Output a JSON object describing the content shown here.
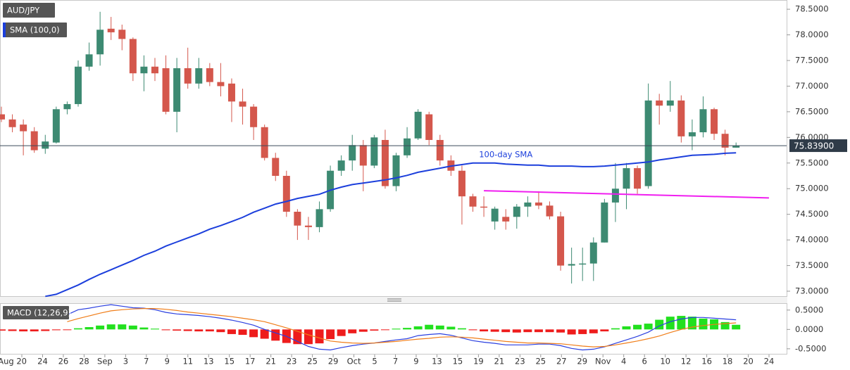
{
  "chart_data": [
    {
      "type": "candlestick",
      "name": "AUD/JPY",
      "up_color": "#3d8a72",
      "down_color": "#d4574c",
      "ylim": [
        72.89,
        78.68
      ],
      "yticks": [
        {
          "value": 73,
          "label": "73.0000"
        },
        {
          "value": 73.5,
          "label": "73.5000"
        },
        {
          "value": 74,
          "label": "74.0000"
        },
        {
          "value": 74.5,
          "label": "74.5000"
        },
        {
          "value": 75,
          "label": "75.0000"
        },
        {
          "value": 75.5,
          "label": "75.5000"
        },
        {
          "value": 76,
          "label": "76.0000"
        },
        {
          "value": 76.5,
          "label": "76.5000"
        },
        {
          "value": 77,
          "label": "77.0000"
        },
        {
          "value": 77.5,
          "label": "77.5000"
        },
        {
          "value": 78,
          "label": "78.0000"
        },
        {
          "value": 78.5,
          "label": "78.5000"
        }
      ],
      "open": [
        76.45,
        76.35,
        76.25,
        76.12,
        75.78,
        75.9,
        76.55,
        76.65,
        77.38,
        77.62,
        78.12,
        78.1,
        77.92,
        77.25,
        77.38,
        77.35,
        76.5,
        77.35,
        77.05,
        77.35,
        77.08,
        77.05,
        76.7,
        76.6,
        76.2,
        75.6,
        75.25,
        74.55,
        74.28,
        74.25,
        74.6,
        75.35,
        75.55,
        75.85,
        75.45,
        75.95,
        75.05,
        75.65,
        75.98,
        76.45,
        75.95,
        75.55,
        75.35,
        74.85,
        74.65,
        74.36,
        74.45,
        74.45,
        74.65,
        74.73,
        74.67,
        74.46,
        73.5,
        73.52,
        73.54,
        73.95,
        74.73,
        75.0,
        75.4,
        75.05,
        76.72,
        76.62,
        76.72,
        76.02,
        76.1,
        76.55,
        76.07,
        75.8
      ],
      "high": [
        76.6,
        76.45,
        76.35,
        76.2,
        76.05,
        76.6,
        76.7,
        77.5,
        77.85,
        78.45,
        78.35,
        78.2,
        77.95,
        77.6,
        77.55,
        77.6,
        77.55,
        77.75,
        77.55,
        77.45,
        77.45,
        77.15,
        76.95,
        76.65,
        76.25,
        75.7,
        75.35,
        74.6,
        74.45,
        74.75,
        75.45,
        75.65,
        76.05,
        75.95,
        76.05,
        76.15,
        75.7,
        76.2,
        76.55,
        76.5,
        76.05,
        75.65,
        75.45,
        74.9,
        74.85,
        74.65,
        74.6,
        74.7,
        74.85,
        74.95,
        74.75,
        74.55,
        73.85,
        73.85,
        74.05,
        74.8,
        75.5,
        75.5,
        75.45,
        77.05,
        76.85,
        77.1,
        76.82,
        76.35,
        76.8,
        76.58,
        76.15,
        75.9
      ],
      "low": [
        76.3,
        76.1,
        75.65,
        75.7,
        75.68,
        75.88,
        76.45,
        76.6,
        77.3,
        77.4,
        77.9,
        77.7,
        77.1,
        76.9,
        77.1,
        76.45,
        76.1,
        76.95,
        76.95,
        77.0,
        76.8,
        76.3,
        76.25,
        75.95,
        75.55,
        75.15,
        74.45,
        74.0,
        74.0,
        74.15,
        74.55,
        75.25,
        75.35,
        74.95,
        75.4,
        75.0,
        74.95,
        75.6,
        75.95,
        75.85,
        75.45,
        75.25,
        74.3,
        74.55,
        74.45,
        74.2,
        74.2,
        74.22,
        74.45,
        74.6,
        74.4,
        73.4,
        73.15,
        73.2,
        73.2,
        73.95,
        74.35,
        74.6,
        74.9,
        75.0,
        76.25,
        76.5,
        75.9,
        75.75,
        76.0,
        75.95,
        75.65,
        75.8
      ],
      "close": [
        76.35,
        76.2,
        76.12,
        75.75,
        75.92,
        76.55,
        76.65,
        77.38,
        77.62,
        78.1,
        78.05,
        77.92,
        77.25,
        77.38,
        77.25,
        76.5,
        77.35,
        77.05,
        77.35,
        77.08,
        77.0,
        76.7,
        76.6,
        76.2,
        75.6,
        75.25,
        74.55,
        74.28,
        74.25,
        74.6,
        75.35,
        75.55,
        75.85,
        75.45,
        76.0,
        75.05,
        75.65,
        75.98,
        76.5,
        75.95,
        75.55,
        75.35,
        74.85,
        74.65,
        74.63,
        74.61,
        74.36,
        74.65,
        74.73,
        74.67,
        74.46,
        73.5,
        73.53,
        73.54,
        73.95,
        74.73,
        75.0,
        75.4,
        75.0,
        76.72,
        76.62,
        76.72,
        76.02,
        76.1,
        76.55,
        76.07,
        75.8,
        75.839
      ],
      "sma": {
        "name": "SMA (100,0)",
        "color": "#1c3fdc",
        "annotation": "100-day SMA",
        "values": [
          null,
          null,
          null,
          null,
          72.9,
          72.94,
          73.03,
          73.12,
          73.23,
          73.33,
          73.42,
          73.51,
          73.6,
          73.7,
          73.78,
          73.88,
          73.96,
          74.04,
          74.12,
          74.21,
          74.28,
          74.36,
          74.44,
          74.54,
          74.62,
          74.7,
          74.75,
          74.81,
          74.85,
          74.89,
          74.97,
          75.03,
          75.08,
          75.11,
          75.14,
          75.17,
          75.21,
          75.26,
          75.32,
          75.36,
          75.4,
          75.44,
          75.47,
          75.5,
          75.5,
          75.5,
          75.48,
          75.47,
          75.46,
          75.46,
          75.44,
          75.44,
          75.44,
          75.43,
          75.43,
          75.44,
          75.46,
          75.48,
          75.5,
          75.52,
          75.56,
          75.59,
          75.62,
          75.65,
          75.66,
          75.67,
          75.69,
          75.7
        ]
      },
      "trendline": {
        "color": "#f01ef0",
        "x": [
          44,
          70
        ],
        "values": [
          74.96,
          74.82
        ]
      },
      "last_price": {
        "value": 75.839,
        "label": "75.83900"
      }
    },
    {
      "type": "macd",
      "title": "MACD (12,26,9)",
      "ylim": [
        -0.63,
        0.66
      ],
      "yticks": [
        {
          "value": -0.5,
          "label": "-0.5000"
        },
        {
          "value": 0,
          "label": "0.0000"
        },
        {
          "value": 0.5,
          "label": "0.5000"
        }
      ],
      "histogram": {
        "up_color": "#22e01e",
        "down_color": "#ee1c1c",
        "values": [
          -0.03,
          -0.04,
          -0.05,
          -0.05,
          -0.04,
          -0.02,
          -0.01,
          0.03,
          0.06,
          0.1,
          0.13,
          0.13,
          0.1,
          0.05,
          0.02,
          -0.02,
          -0.03,
          -0.04,
          -0.05,
          -0.05,
          -0.07,
          -0.12,
          -0.14,
          -0.2,
          -0.24,
          -0.29,
          -0.35,
          -0.38,
          -0.38,
          -0.36,
          -0.25,
          -0.17,
          -0.1,
          -0.06,
          -0.03,
          -0.01,
          0.02,
          0.04,
          0.08,
          0.12,
          0.1,
          0.07,
          0.03,
          -0.02,
          -0.05,
          -0.06,
          -0.07,
          -0.08,
          -0.07,
          -0.07,
          -0.07,
          -0.08,
          -0.13,
          -0.12,
          -0.1,
          -0.05,
          0.03,
          0.08,
          0.12,
          0.15,
          0.25,
          0.33,
          0.35,
          0.33,
          0.28,
          0.26,
          0.19,
          0.12
        ]
      },
      "macd": {
        "color": "#2a3fe0",
        "values": [
          null,
          null,
          null,
          null,
          null,
          null,
          0.38,
          0.51,
          0.55,
          0.6,
          0.64,
          0.6,
          0.56,
          0.55,
          0.51,
          0.44,
          0.4,
          0.38,
          0.36,
          0.33,
          0.29,
          0.24,
          0.18,
          0.11,
          0,
          -0.09,
          -0.18,
          -0.31,
          -0.44,
          -0.51,
          -0.53,
          -0.47,
          -0.42,
          -0.38,
          -0.35,
          -0.31,
          -0.27,
          -0.24,
          -0.16,
          -0.13,
          -0.11,
          -0.15,
          -0.22,
          -0.29,
          -0.33,
          -0.36,
          -0.4,
          -0.4,
          -0.4,
          -0.38,
          -0.38,
          -0.42,
          -0.49,
          -0.53,
          -0.51,
          -0.45,
          -0.36,
          -0.27,
          -0.18,
          -0.07,
          0.09,
          0.2,
          0.27,
          0.31,
          0.31,
          0.29,
          0.27,
          0.25
        ]
      },
      "signal": {
        "color": "#f07d18",
        "values": [
          null,
          null,
          null,
          null,
          null,
          null,
          0.2,
          0.28,
          0.35,
          0.42,
          0.48,
          0.51,
          0.53,
          0.54,
          0.54,
          0.52,
          0.49,
          0.45,
          0.42,
          0.39,
          0.36,
          0.33,
          0.29,
          0.25,
          0.2,
          0.12,
          0.04,
          -0.05,
          -0.14,
          -0.22,
          -0.3,
          -0.33,
          -0.35,
          -0.36,
          -0.35,
          -0.33,
          -0.31,
          -0.28,
          -0.25,
          -0.23,
          -0.2,
          -0.19,
          -0.2,
          -0.22,
          -0.25,
          -0.28,
          -0.31,
          -0.33,
          -0.35,
          -0.35,
          -0.36,
          -0.37,
          -0.4,
          -0.43,
          -0.45,
          -0.44,
          -0.4,
          -0.35,
          -0.3,
          -0.24,
          -0.17,
          -0.08,
          0,
          0.06,
          0.1,
          0.13,
          0.15,
          0.17
        ]
      },
      "x_labels": [
        "Aug 20",
        "24",
        "26",
        "28",
        "Sep",
        "3",
        "7",
        "9",
        "11",
        "13",
        "15",
        "17",
        "21",
        "23",
        "25",
        "29",
        "Oct",
        "5",
        "7",
        "9",
        "13",
        "15",
        "19",
        "21",
        "23",
        "25",
        "27",
        "29",
        "Nov",
        "4",
        "6",
        "10",
        "12",
        "16",
        "18",
        "20",
        "24"
      ]
    }
  ]
}
